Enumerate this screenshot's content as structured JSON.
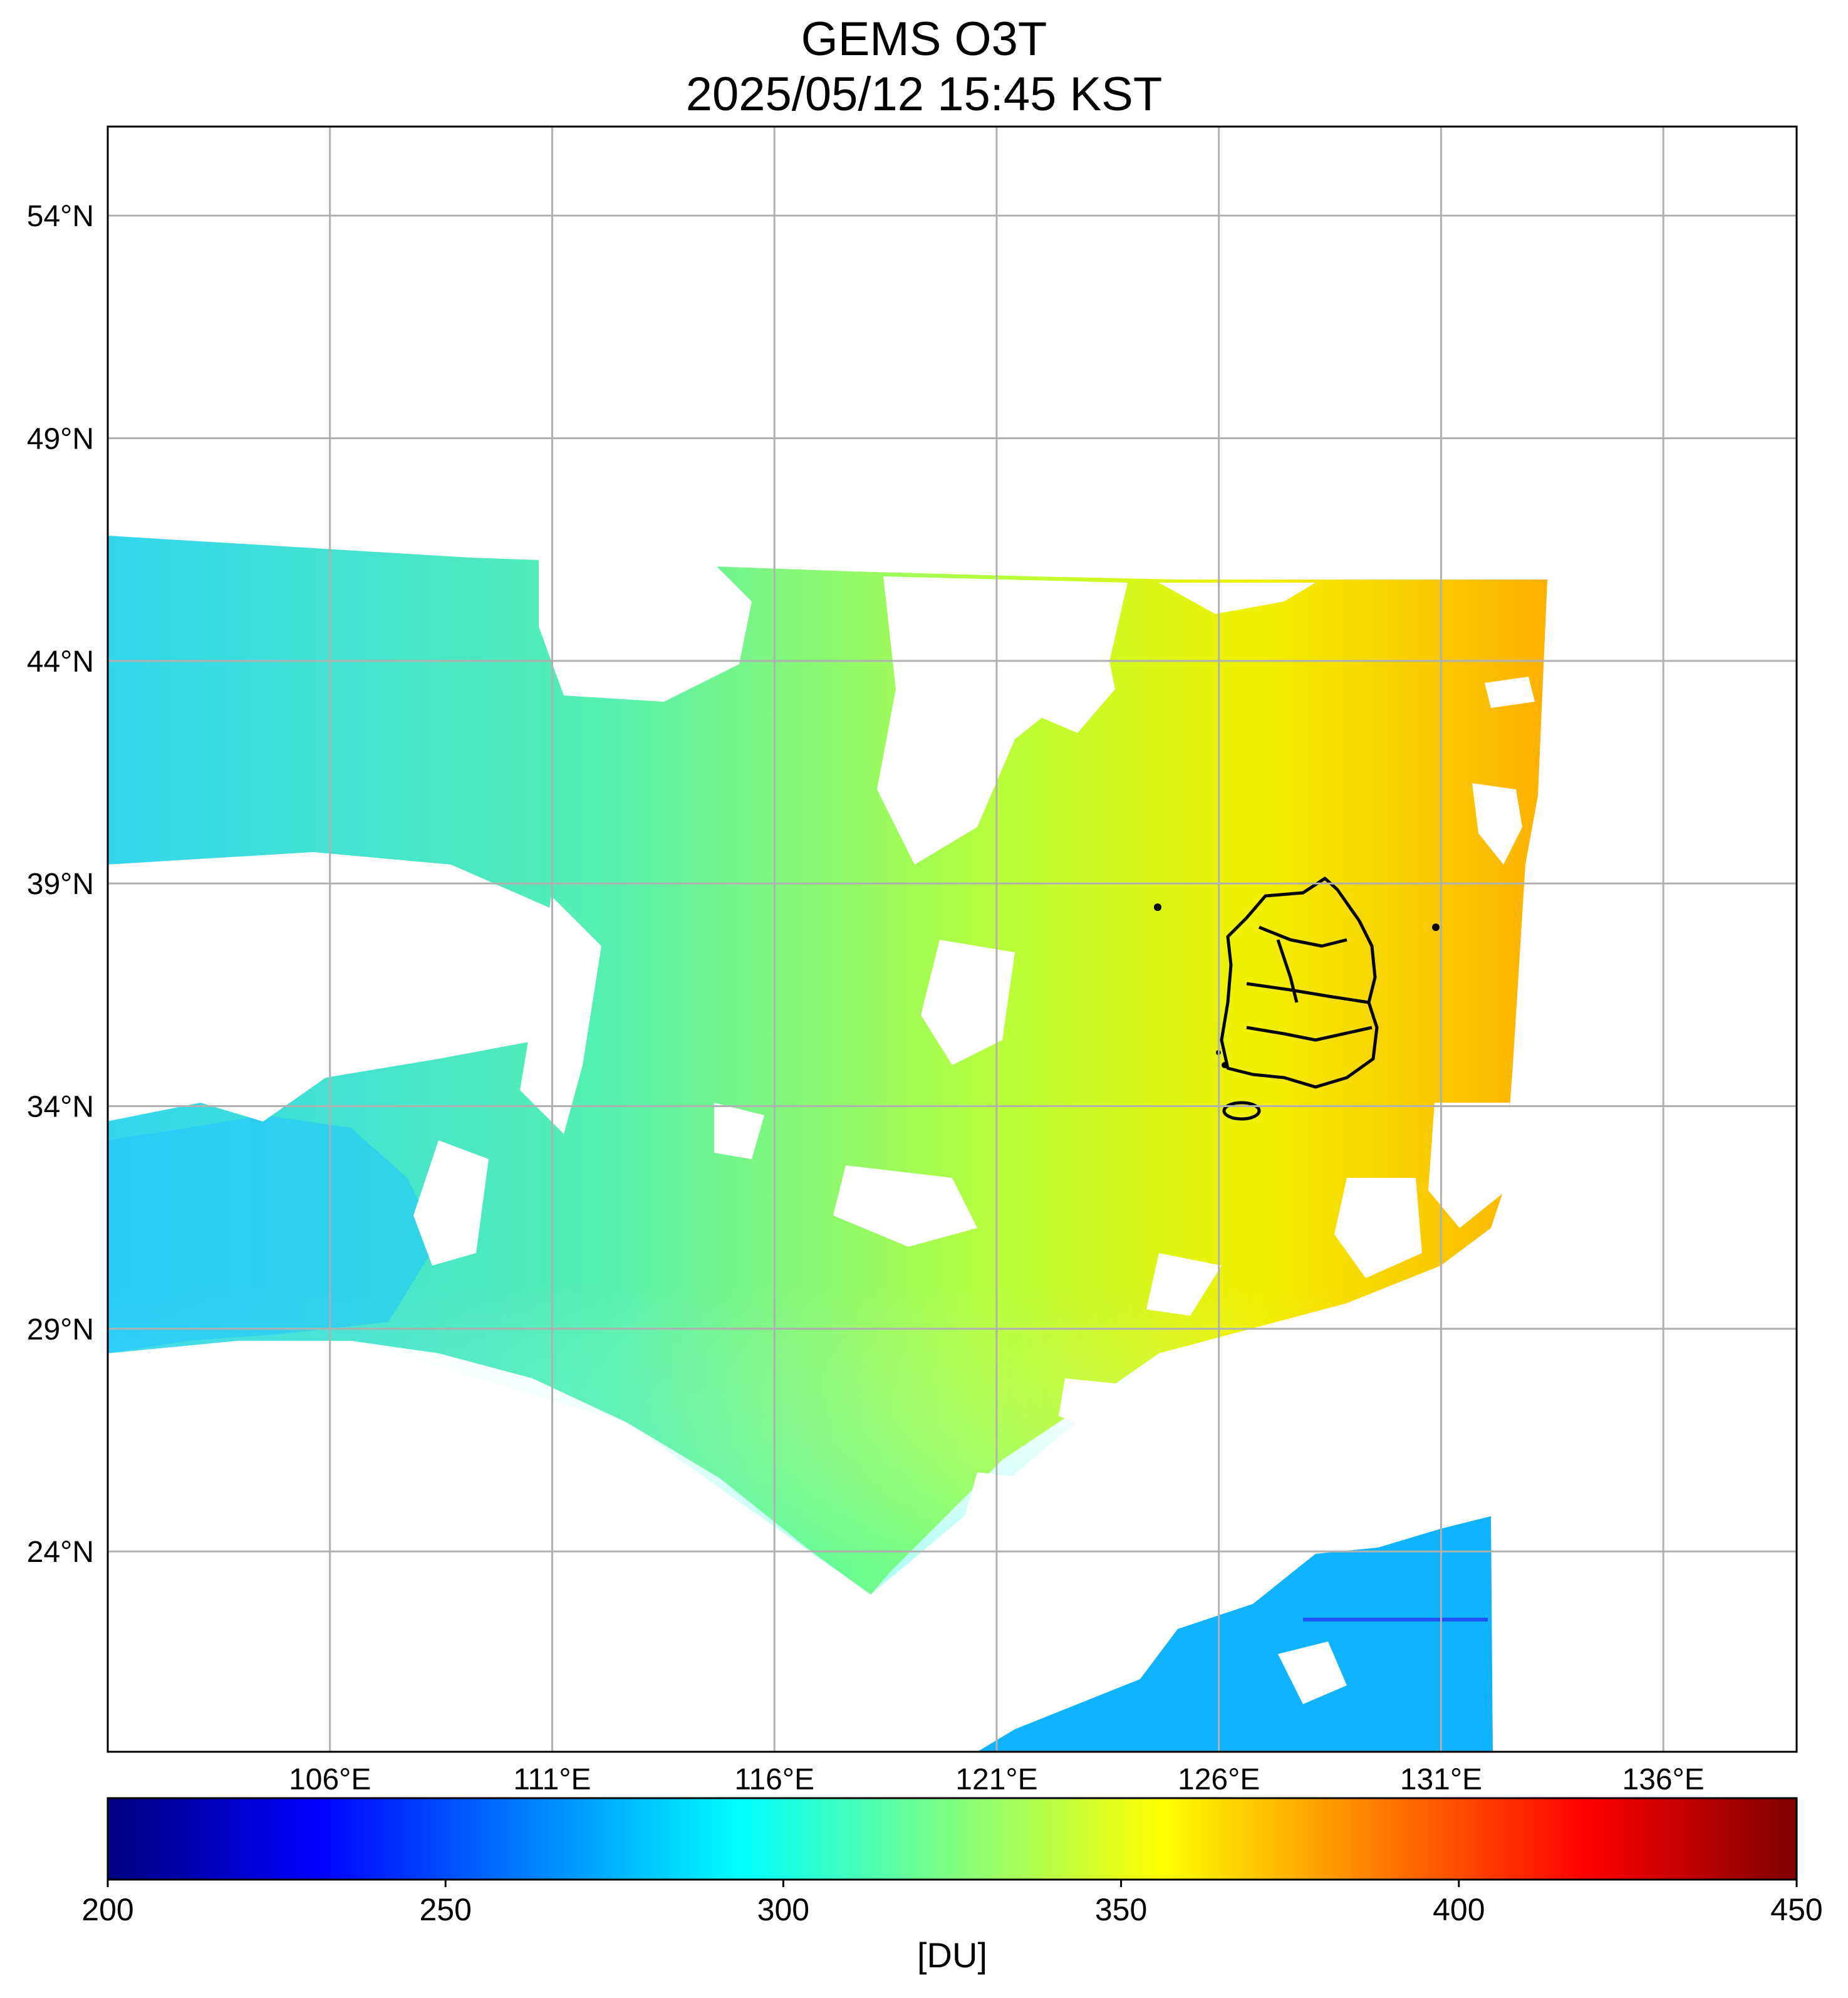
{
  "title": {
    "line1": "GEMS O3T",
    "line2": "2025/05/12 15:45 KST"
  },
  "map": {
    "lat_range": [
      19.5,
      56
    ],
    "lon_range": [
      101,
      139
    ],
    "lat_ticks": [
      "54°N",
      "49°N",
      "44°N",
      "39°N",
      "34°N",
      "29°N",
      "24°N"
    ],
    "lat_values": [
      54,
      49,
      44,
      39,
      34,
      29,
      24
    ],
    "lon_ticks": [
      "106°E",
      "111°E",
      "116°E",
      "121°E",
      "126°E",
      "131°E",
      "136°E"
    ],
    "lon_values": [
      106,
      111,
      116,
      121,
      126,
      131,
      136
    ],
    "grid": true
  },
  "colorbar": {
    "min": 200,
    "max": 450,
    "tick_labels": [
      "200",
      "250",
      "300",
      "350",
      "400",
      "450"
    ],
    "tick_values": [
      200,
      250,
      300,
      350,
      400,
      450
    ],
    "unit": "[DU]",
    "colormap": "jet",
    "colors": [
      "#00007f",
      "#0000ff",
      "#007fff",
      "#00ffff",
      "#7fff7f",
      "#ffff00",
      "#ff7f00",
      "#ff0000",
      "#7f0000"
    ]
  }
}
